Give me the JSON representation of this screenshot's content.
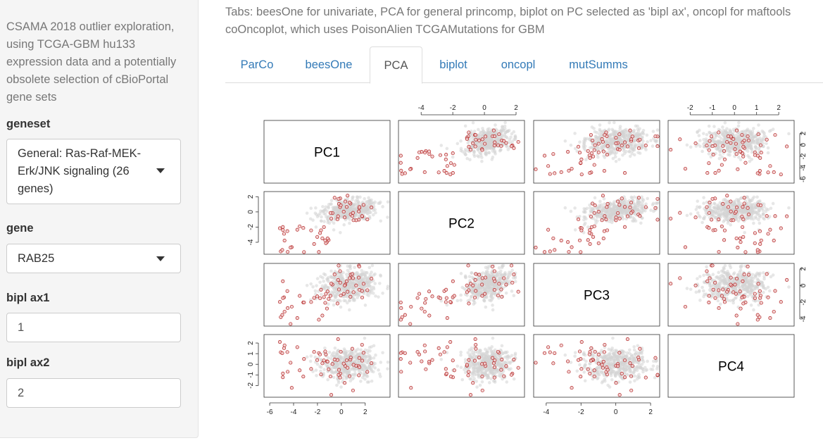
{
  "sidebar": {
    "intro": "CSAMA 2018 outlier exploration, using TCGA-GBM hu133 expression data and a potentially obsolete selection of cBioPortal gene sets",
    "geneset": {
      "label": "geneset",
      "value": "General: Ras-Raf-MEK-Erk/JNK signaling (26 genes)"
    },
    "gene": {
      "label": "gene",
      "value": "RAB25"
    },
    "bipl_ax1": {
      "label": "bipl ax1",
      "value": "1"
    },
    "bipl_ax2": {
      "label": "bipl ax2",
      "value": "2"
    }
  },
  "main": {
    "note": "Tabs: beesOne for univariate, PCA for general princomp, biplot on PC selected as 'bipl ax', oncopl for maftools coOncoplot, which uses PoisonAlien TCGAMutations for GBM",
    "tabs": [
      {
        "label": "ParCo",
        "active": false
      },
      {
        "label": "beesOne",
        "active": false
      },
      {
        "label": "PCA",
        "active": true
      },
      {
        "label": "biplot",
        "active": false
      },
      {
        "label": "oncopl",
        "active": false
      },
      {
        "label": "mutSumms",
        "active": false
      }
    ]
  },
  "chart_data": {
    "type": "scatter",
    "subtype": "pairs-matrix",
    "variables": [
      "PC1",
      "PC2",
      "PC3",
      "PC4"
    ],
    "ranges": {
      "PC1": [
        -6.3,
        3.9
      ],
      "PC2": [
        -5.3,
        2.4
      ],
      "PC3": [
        -4.6,
        2.4
      ],
      "PC4": [
        -2.9,
        2.6
      ]
    },
    "ticks": {
      "PC1": [
        -6,
        -4,
        -2,
        0,
        2
      ],
      "PC2": [
        -4,
        -2,
        0,
        2
      ],
      "PC3": [
        -4,
        -2,
        0,
        2
      ],
      "PC4": [
        -2,
        -1,
        0,
        1,
        2
      ]
    },
    "series": [
      {
        "name": "",
        "color": "#d3d3d3",
        "count": 420
      },
      {
        "name": "",
        "color": "#b22222",
        "count": 60
      }
    ],
    "colors": {
      "background_points": "#d3d3d3",
      "highlighted_points": "#b22222"
    },
    "grid": false,
    "legend": "none"
  }
}
